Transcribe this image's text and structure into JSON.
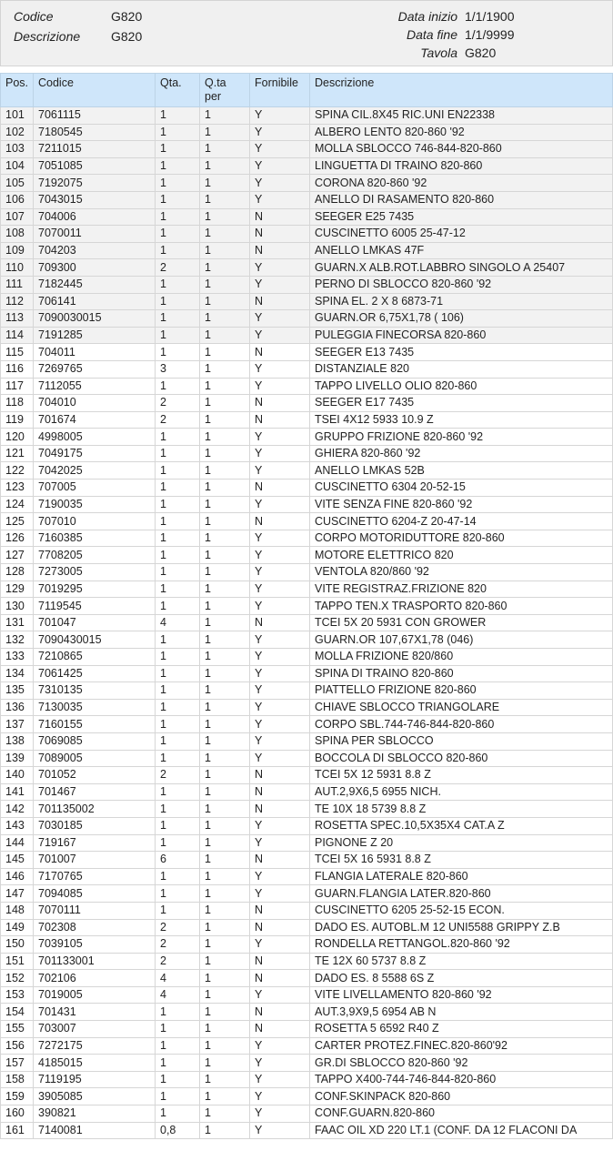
{
  "info": {
    "codice_label": "Codice",
    "codice_value": "G820",
    "descrizione_label": "Descrizione",
    "descrizione_value": "G820",
    "data_inizio_label": "Data inizio",
    "data_inizio_value": "1/1/1900",
    "data_fine_label": "Data fine",
    "data_fine_value": "1/1/9999",
    "tavola_label": "Tavola",
    "tavola_value": "G820"
  },
  "table": {
    "headers": [
      "Pos.",
      "Codice",
      "Qta.",
      "Q.ta per",
      "Fornibile",
      "Descrizione"
    ],
    "rows": [
      [
        "101",
        "7061115",
        "1",
        "1",
        "Y",
        "SPINA CIL.8X45 RIC.UNI EN22338"
      ],
      [
        "102",
        "7180545",
        "1",
        "1",
        "Y",
        "ALBERO LENTO 820-860 '92"
      ],
      [
        "103",
        "7211015",
        "1",
        "1",
        "Y",
        "MOLLA SBLOCCO 746-844-820-860"
      ],
      [
        "104",
        "7051085",
        "1",
        "1",
        "Y",
        "LINGUETTA DI TRAINO 820-860"
      ],
      [
        "105",
        "7192075",
        "1",
        "1",
        "Y",
        "CORONA 820-860 '92"
      ],
      [
        "106",
        "7043015",
        "1",
        "1",
        "Y",
        "ANELLO DI RASAMENTO 820-860"
      ],
      [
        "107",
        "704006",
        "1",
        "1",
        "N",
        "SEEGER E25 7435"
      ],
      [
        "108",
        "7070011",
        "1",
        "1",
        "N",
        "CUSCINETTO 6005 25-47-12"
      ],
      [
        "109",
        "704203",
        "1",
        "1",
        "N",
        "ANELLO LMKAS 47F"
      ],
      [
        "110",
        "709300",
        "2",
        "1",
        "Y",
        "GUARN.X ALB.ROT.LABBRO SINGOLO A 25407"
      ],
      [
        "111",
        "7182445",
        "1",
        "1",
        "Y",
        "PERNO DI SBLOCCO 820-860 '92"
      ],
      [
        "112",
        "706141",
        "1",
        "1",
        "N",
        "SPINA EL. 2  X 8 6873-71"
      ],
      [
        "113",
        "7090030015",
        "1",
        "1",
        "Y",
        "GUARN.OR  6,75X1,78 ( 106)"
      ],
      [
        "114",
        "7191285",
        "1",
        "1",
        "Y",
        "PULEGGIA FINECORSA 820-860"
      ],
      [
        "115",
        "704011",
        "1",
        "1",
        "N",
        "SEEGER E13 7435"
      ],
      [
        "116",
        "7269765",
        "3",
        "1",
        "Y",
        "DISTANZIALE 820"
      ],
      [
        "117",
        "7112055",
        "1",
        "1",
        "Y",
        "TAPPO LIVELLO OLIO 820-860"
      ],
      [
        "118",
        "704010",
        "2",
        "1",
        "N",
        "SEEGER E17 7435"
      ],
      [
        "119",
        "701674",
        "2",
        "1",
        "N",
        "TSEI  4X12 5933 10.9 Z"
      ],
      [
        "120",
        "4998005",
        "1",
        "1",
        "Y",
        "GRUPPO FRIZIONE 820-860 '92"
      ],
      [
        "121",
        "7049175",
        "1",
        "1",
        "Y",
        "GHIERA 820-860 '92"
      ],
      [
        "122",
        "7042025",
        "1",
        "1",
        "Y",
        "ANELLO LMKAS 52B"
      ],
      [
        "123",
        "707005",
        "1",
        "1",
        "N",
        "CUSCINETTO 6304 20-52-15"
      ],
      [
        "124",
        "7190035",
        "1",
        "1",
        "Y",
        "VITE SENZA FINE 820-860 '92"
      ],
      [
        "125",
        "707010",
        "1",
        "1",
        "N",
        "CUSCINETTO 6204-Z 20-47-14"
      ],
      [
        "126",
        "7160385",
        "1",
        "1",
        "Y",
        "CORPO MOTORIDUTTORE 820-860"
      ],
      [
        "127",
        "7708205",
        "1",
        "1",
        "Y",
        "MOTORE ELETTRICO 820"
      ],
      [
        "128",
        "7273005",
        "1",
        "1",
        "Y",
        "VENTOLA 820/860 '92"
      ],
      [
        "129",
        "7019295",
        "1",
        "1",
        "Y",
        "VITE REGISTRAZ.FRIZIONE 820"
      ],
      [
        "130",
        "7119545",
        "1",
        "1",
        "Y",
        "TAPPO TEN.X TRASPORTO 820-860"
      ],
      [
        "131",
        "701047",
        "4",
        "1",
        "N",
        "TCEI  5X 20 5931 CON GROWER"
      ],
      [
        "132",
        "7090430015",
        "1",
        "1",
        "Y",
        "GUARN.OR 107,67X1,78 (046)"
      ],
      [
        "133",
        "7210865",
        "1",
        "1",
        "Y",
        "MOLLA FRIZIONE 820/860"
      ],
      [
        "134",
        "7061425",
        "1",
        "1",
        "Y",
        "SPINA DI TRAINO 820-860"
      ],
      [
        "135",
        "7310135",
        "1",
        "1",
        "Y",
        "PIATTELLO FRIZIONE 820-860"
      ],
      [
        "136",
        "7130035",
        "1",
        "1",
        "Y",
        "CHIAVE SBLOCCO TRIANGOLARE"
      ],
      [
        "137",
        "7160155",
        "1",
        "1",
        "Y",
        "CORPO SBL.744-746-844-820-860"
      ],
      [
        "138",
        "7069085",
        "1",
        "1",
        "Y",
        "SPINA PER SBLOCCO"
      ],
      [
        "139",
        "7089005",
        "1",
        "1",
        "Y",
        "BOCCOLA DI SBLOCCO 820-860"
      ],
      [
        "140",
        "701052",
        "2",
        "1",
        "N",
        "TCEI  5X 12 5931 8.8 Z"
      ],
      [
        "141",
        "701467",
        "1",
        "1",
        "N",
        "AUT.2,9X6,5 6955 NICH."
      ],
      [
        "142",
        "701135002",
        "1",
        "1",
        "N",
        "TE 10X 18 5739 8.8 Z"
      ],
      [
        "143",
        "7030185",
        "1",
        "1",
        "Y",
        "ROSETTA SPEC.10,5X35X4 CAT.A Z"
      ],
      [
        "144",
        "719167",
        "1",
        "1",
        "Y",
        "PIGNONE Z 20"
      ],
      [
        "145",
        "701007",
        "6",
        "1",
        "N",
        "TCEI  5X 16 5931 8.8 Z"
      ],
      [
        "146",
        "7170765",
        "1",
        "1",
        "Y",
        "FLANGIA LATERALE 820-860"
      ],
      [
        "147",
        "7094085",
        "1",
        "1",
        "Y",
        "GUARN.FLANGIA LATER.820-860"
      ],
      [
        "148",
        "7070111",
        "1",
        "1",
        "N",
        "CUSCINETTO 6205 25-52-15 ECON."
      ],
      [
        "149",
        "702308",
        "2",
        "1",
        "N",
        "DADO ES. AUTOBL.M 12 UNI5588 GRIPPY  Z.B"
      ],
      [
        "150",
        "7039105",
        "2",
        "1",
        "Y",
        "RONDELLA RETTANGOL.820-860 '92"
      ],
      [
        "151",
        "701133001",
        "2",
        "1",
        "N",
        "TE 12X 60 5737 8.8 Z"
      ],
      [
        "152",
        "702106",
        "4",
        "1",
        "N",
        "DADO ES. 8 5588 6S Z"
      ],
      [
        "153",
        "7019005",
        "4",
        "1",
        "Y",
        "VITE LIVELLAMENTO 820-860 '92"
      ],
      [
        "154",
        "701431",
        "1",
        "1",
        "N",
        "AUT.3,9X9,5 6954 AB N"
      ],
      [
        "155",
        "703007",
        "1",
        "1",
        "N",
        "ROSETTA  5 6592 R40 Z"
      ],
      [
        "156",
        "7272175",
        "1",
        "1",
        "Y",
        "CARTER PROTEZ.FINEC.820-860'92"
      ],
      [
        "157",
        "4185015",
        "1",
        "1",
        "Y",
        "GR.DI SBLOCCO 820-860 '92"
      ],
      [
        "158",
        "7119195",
        "1",
        "1",
        "Y",
        "TAPPO X400-744-746-844-820-860"
      ],
      [
        "159",
        "3905085",
        "1",
        "1",
        "Y",
        "CONF.SKINPACK 820-860"
      ],
      [
        "160",
        "390821",
        "1",
        "1",
        "Y",
        "CONF.GUARN.820-860"
      ],
      [
        "161",
        "7140081",
        "0,8",
        "1",
        "Y",
        "FAAC OIL XD 220 LT.1 (CONF. DA 12 FLACONI DA"
      ]
    ],
    "shaded_rows_through": "114"
  },
  "colors": {
    "header_bg": "#cfe6fa",
    "info_bg": "#f0f0f0",
    "shaded_row_bg": "#f2f2f2"
  }
}
